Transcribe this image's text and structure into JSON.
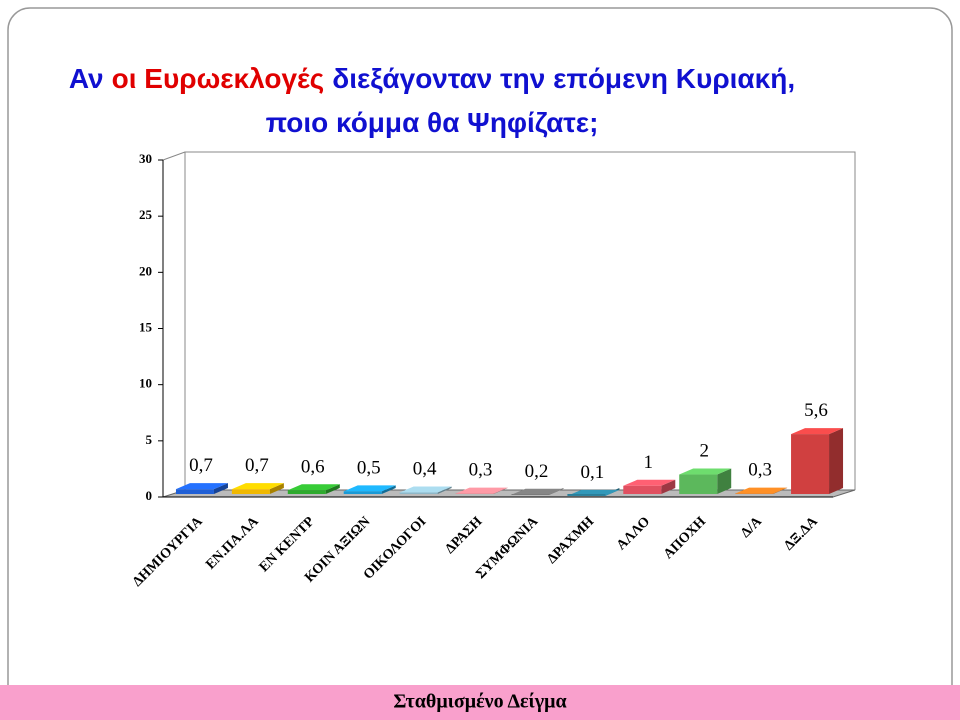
{
  "chart_data": {
    "type": "bar3d",
    "title": [
      [
        {
          "text": "Αν",
          "color": "#1010d0"
        },
        {
          "text": "οι Ευρωεκλογές",
          "color": "#e00000"
        },
        {
          "text": "διεξάγονταν την επόμενη Κυριακή,",
          "color": "#1010d0"
        }
      ],
      [
        {
          "text": "ποιο κόμμα θα Ψηφίζατε;",
          "color": "#1010d0"
        }
      ]
    ],
    "categories": [
      "ΔΗΜΙΟΥΡΓΙΑ",
      "ΕΝ.ΠΑ.ΛΑ",
      "ΕΝ ΚΕΝΤΡ",
      "ΚΟΙΝ ΑΞΙΩΝ",
      "ΟΙΚΟΛΟΓΟΙ",
      "ΔΡΑΣΗ",
      "ΣΥΜΦΩΝΙΑ",
      "ΔΡΑΧΜΗ",
      "ΑΛΛΟ",
      "ΑΠΟΧΗ",
      "Δ/Α",
      "ΔΞ.ΔΑ"
    ],
    "values": [
      0.7,
      0.7,
      0.6,
      0.5,
      0.4,
      0.3,
      0.2,
      0.1,
      1,
      2,
      0.3,
      5.6
    ],
    "value_labels": [
      "0,7",
      "0,7",
      "0,6",
      "0,5",
      "0,4",
      "0,3",
      "0,2",
      "0,1",
      "1",
      "2",
      "0,3",
      "5,6"
    ],
    "colors": [
      "#1f5fd6",
      "#f0b800",
      "#2eaa2e",
      "#1a9ad6",
      "#8fb8c8",
      "#e0808a",
      "#707070",
      "#2a7f9a",
      "#e05060",
      "#5cb85c",
      "#e07820",
      "#d04040"
    ],
    "ylim": [
      0,
      30
    ],
    "yticks": [
      0,
      5,
      10,
      15,
      20,
      25,
      30
    ],
    "grid": false
  },
  "footer": "Σταθμισμένο Δείγμα"
}
